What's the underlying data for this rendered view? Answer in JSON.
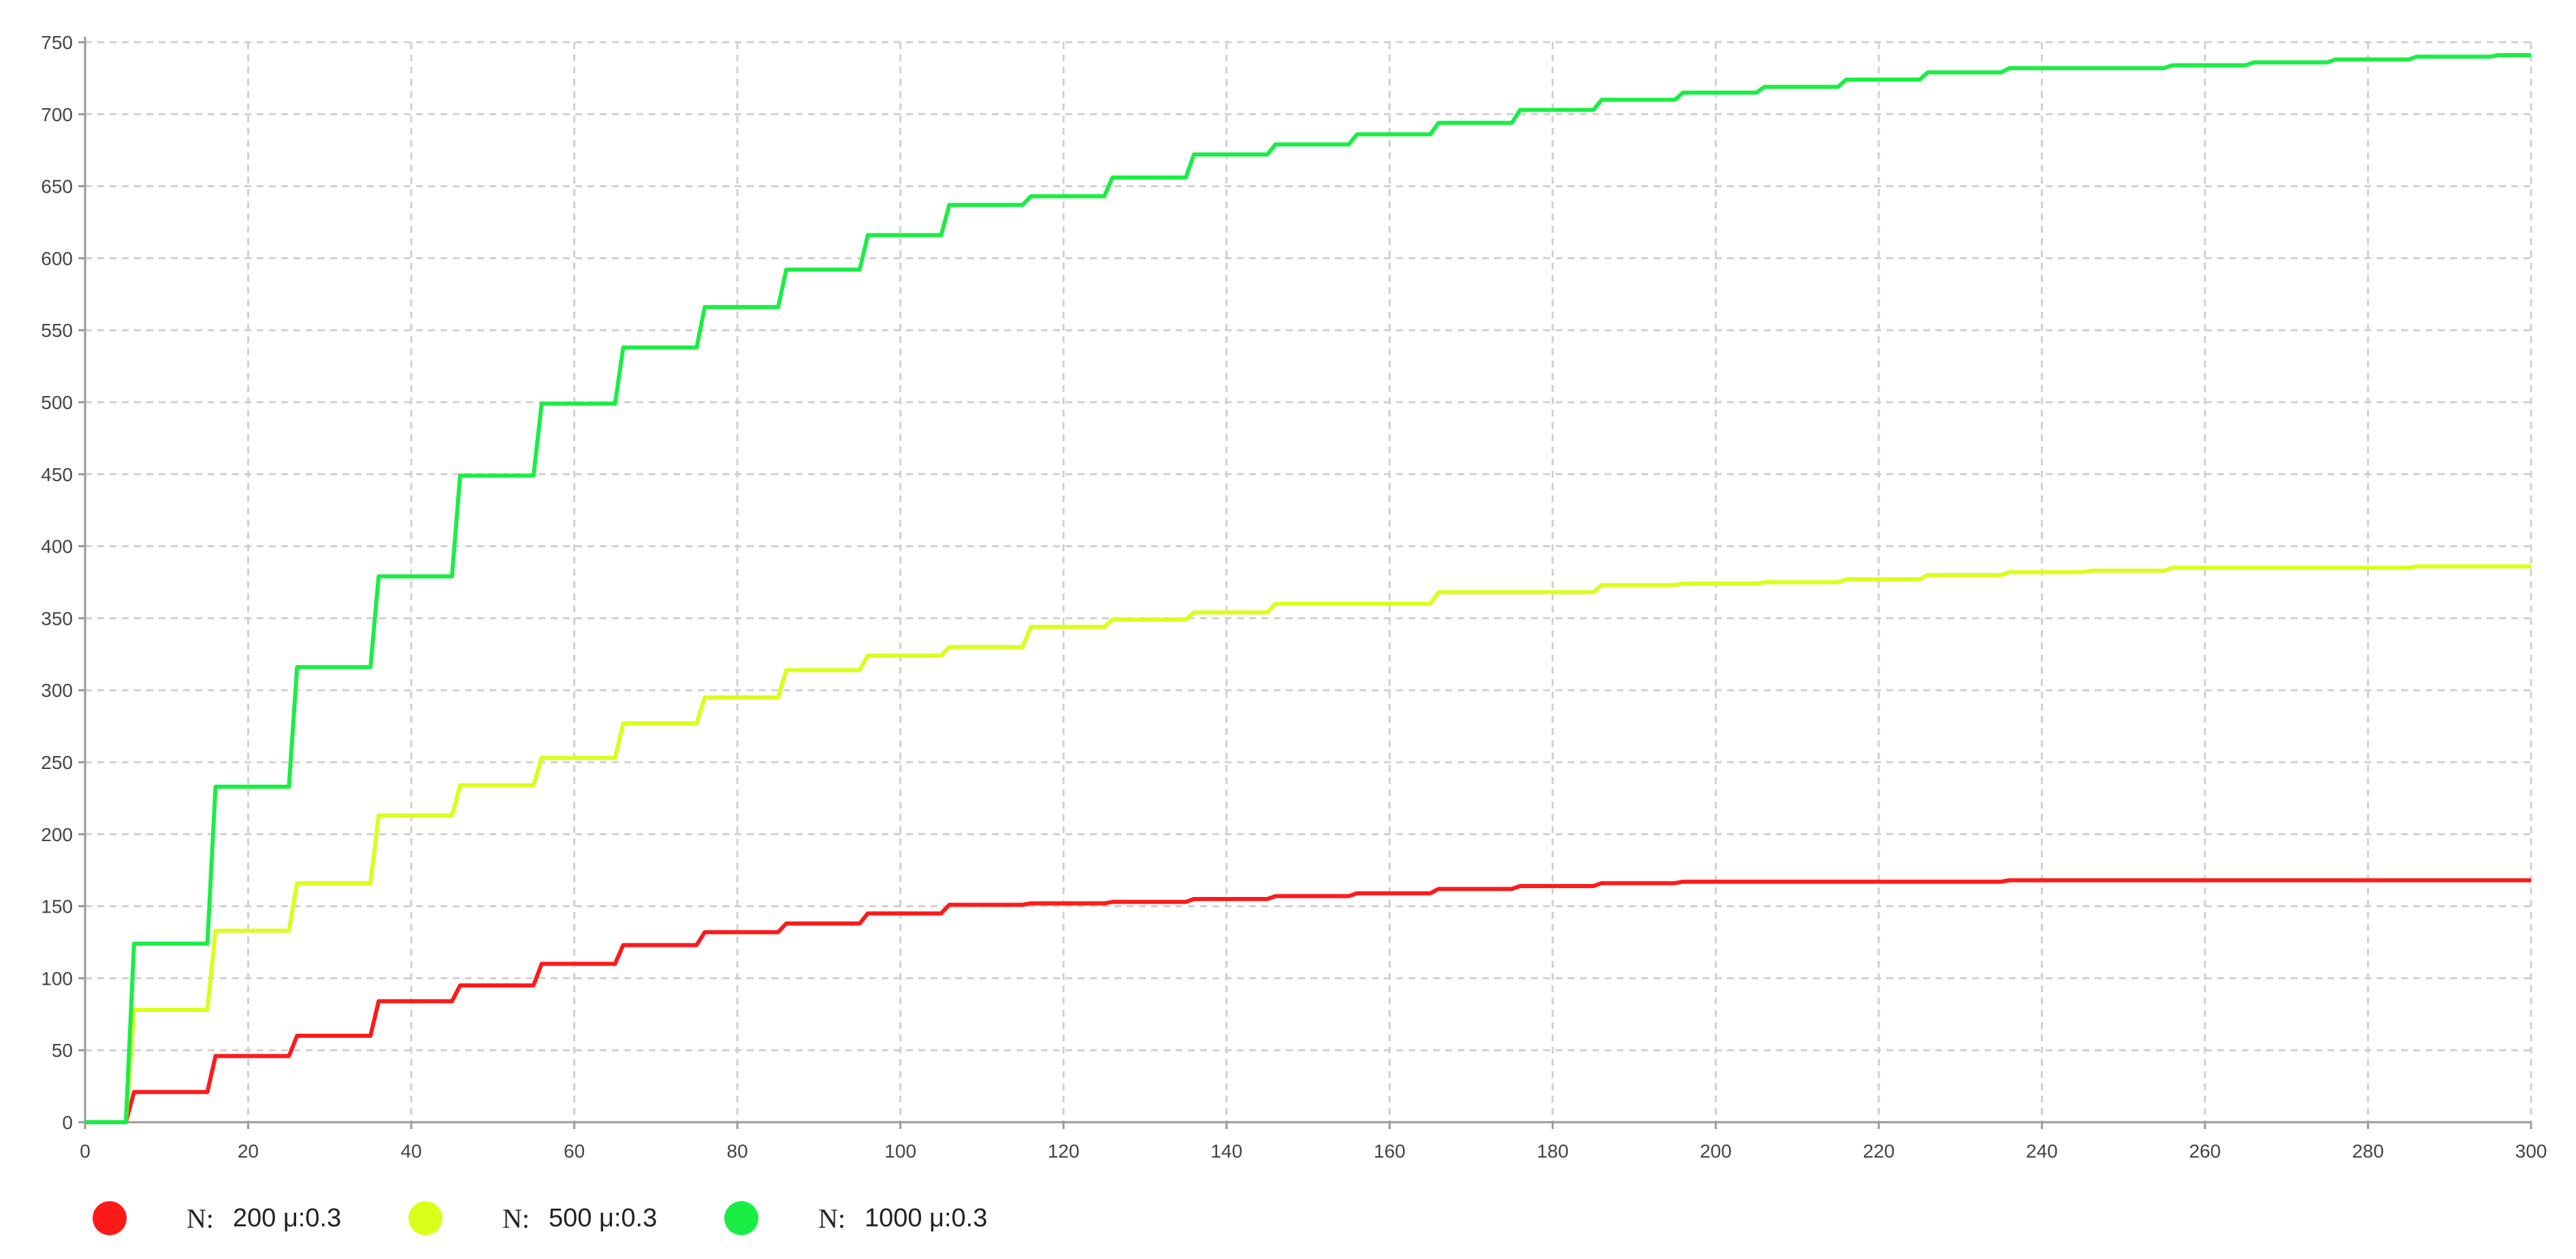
{
  "chart_data": {
    "type": "line",
    "title": "",
    "xlabel": "",
    "ylabel": "",
    "xlim": [
      0,
      300
    ],
    "ylim": [
      0,
      750
    ],
    "x_ticks": [
      "0",
      "20",
      "40",
      "60",
      "80",
      "100",
      "120",
      "140",
      "160",
      "180",
      "200",
      "220",
      "240",
      "260",
      "280",
      "300"
    ],
    "y_ticks": [
      "0",
      "50",
      "100",
      "150",
      "200",
      "250",
      "300",
      "350",
      "400",
      "450",
      "500",
      "550",
      "600",
      "650",
      "700",
      "750"
    ],
    "grid": true,
    "legend_position": "bottom-left",
    "series": [
      {
        "name": "200 μ:0.3",
        "color": "#ff1a1a",
        "points": [
          [
            0,
            0
          ],
          [
            5,
            0
          ],
          [
            6,
            21
          ],
          [
            15,
            21
          ],
          [
            16,
            46
          ],
          [
            25,
            46
          ],
          [
            26,
            60
          ],
          [
            35,
            60
          ],
          [
            36,
            84
          ],
          [
            45,
            84
          ],
          [
            46,
            95
          ],
          [
            55,
            95
          ],
          [
            56,
            110
          ],
          [
            65,
            110
          ],
          [
            66,
            123
          ],
          [
            75,
            123
          ],
          [
            76,
            132
          ],
          [
            85,
            132
          ],
          [
            86,
            138
          ],
          [
            95,
            138
          ],
          [
            96,
            145
          ],
          [
            105,
            145
          ],
          [
            106,
            151
          ],
          [
            115,
            151
          ],
          [
            116,
            152
          ],
          [
            125,
            152
          ],
          [
            126,
            153
          ],
          [
            135,
            153
          ],
          [
            136,
            155
          ],
          [
            145,
            155
          ],
          [
            146,
            157
          ],
          [
            155,
            157
          ],
          [
            156,
            159
          ],
          [
            165,
            159
          ],
          [
            166,
            162
          ],
          [
            175,
            162
          ],
          [
            176,
            164
          ],
          [
            185,
            164
          ],
          [
            186,
            166
          ],
          [
            195,
            166
          ],
          [
            196,
            167
          ],
          [
            235,
            167
          ],
          [
            236,
            168
          ],
          [
            300,
            168
          ]
        ]
      },
      {
        "name": "500 μ:0.3",
        "color": "#d9ff1a",
        "points": [
          [
            0,
            0
          ],
          [
            5,
            0
          ],
          [
            6,
            78
          ],
          [
            15,
            78
          ],
          [
            16,
            133
          ],
          [
            25,
            133
          ],
          [
            26,
            166
          ],
          [
            35,
            166
          ],
          [
            36,
            213
          ],
          [
            45,
            213
          ],
          [
            46,
            234
          ],
          [
            55,
            234
          ],
          [
            56,
            253
          ],
          [
            65,
            253
          ],
          [
            66,
            277
          ],
          [
            75,
            277
          ],
          [
            76,
            295
          ],
          [
            85,
            295
          ],
          [
            86,
            314
          ],
          [
            95,
            314
          ],
          [
            96,
            324
          ],
          [
            105,
            324
          ],
          [
            106,
            330
          ],
          [
            115,
            330
          ],
          [
            116,
            344
          ],
          [
            125,
            344
          ],
          [
            126,
            349
          ],
          [
            135,
            349
          ],
          [
            136,
            354
          ],
          [
            145,
            354
          ],
          [
            146,
            360
          ],
          [
            165,
            360
          ],
          [
            166,
            368
          ],
          [
            185,
            368
          ],
          [
            186,
            373
          ],
          [
            195,
            373
          ],
          [
            196,
            374
          ],
          [
            205,
            374
          ],
          [
            206,
            375
          ],
          [
            215,
            375
          ],
          [
            216,
            377
          ],
          [
            225,
            377
          ],
          [
            226,
            380
          ],
          [
            235,
            380
          ],
          [
            236,
            382
          ],
          [
            245,
            382
          ],
          [
            246,
            383
          ],
          [
            255,
            383
          ],
          [
            256,
            385
          ],
          [
            285,
            385
          ],
          [
            286,
            386
          ],
          [
            300,
            386
          ]
        ]
      },
      {
        "name": "1000 μ:0.3",
        "color": "#1aee44",
        "points": [
          [
            0,
            0
          ],
          [
            5,
            0
          ],
          [
            6,
            124
          ],
          [
            15,
            124
          ],
          [
            16,
            233
          ],
          [
            25,
            233
          ],
          [
            26,
            316
          ],
          [
            35,
            316
          ],
          [
            36,
            379
          ],
          [
            45,
            379
          ],
          [
            46,
            449
          ],
          [
            55,
            449
          ],
          [
            56,
            499
          ],
          [
            65,
            499
          ],
          [
            66,
            538
          ],
          [
            75,
            538
          ],
          [
            76,
            566
          ],
          [
            85,
            566
          ],
          [
            86,
            592
          ],
          [
            95,
            592
          ],
          [
            96,
            616
          ],
          [
            105,
            616
          ],
          [
            106,
            637
          ],
          [
            115,
            637
          ],
          [
            116,
            643
          ],
          [
            125,
            643
          ],
          [
            126,
            656
          ],
          [
            135,
            656
          ],
          [
            136,
            672
          ],
          [
            145,
            672
          ],
          [
            146,
            679
          ],
          [
            155,
            679
          ],
          [
            156,
            686
          ],
          [
            165,
            686
          ],
          [
            166,
            694
          ],
          [
            175,
            694
          ],
          [
            176,
            703
          ],
          [
            185,
            703
          ],
          [
            186,
            710
          ],
          [
            195,
            710
          ],
          [
            196,
            715
          ],
          [
            205,
            715
          ],
          [
            206,
            719
          ],
          [
            215,
            719
          ],
          [
            216,
            724
          ],
          [
            225,
            724
          ],
          [
            226,
            729
          ],
          [
            235,
            729
          ],
          [
            236,
            732
          ],
          [
            255,
            732
          ],
          [
            256,
            734
          ],
          [
            265,
            734
          ],
          [
            266,
            736
          ],
          [
            275,
            736
          ],
          [
            276,
            738
          ],
          [
            285,
            738
          ],
          [
            286,
            740
          ],
          [
            295,
            740
          ],
          [
            296,
            741
          ],
          [
            300,
            741
          ]
        ]
      }
    ]
  },
  "legend": {
    "prefix": "N:",
    "items": [
      "200 μ:0.3",
      "500 μ:0.3",
      "1000 μ:0.3"
    ]
  }
}
